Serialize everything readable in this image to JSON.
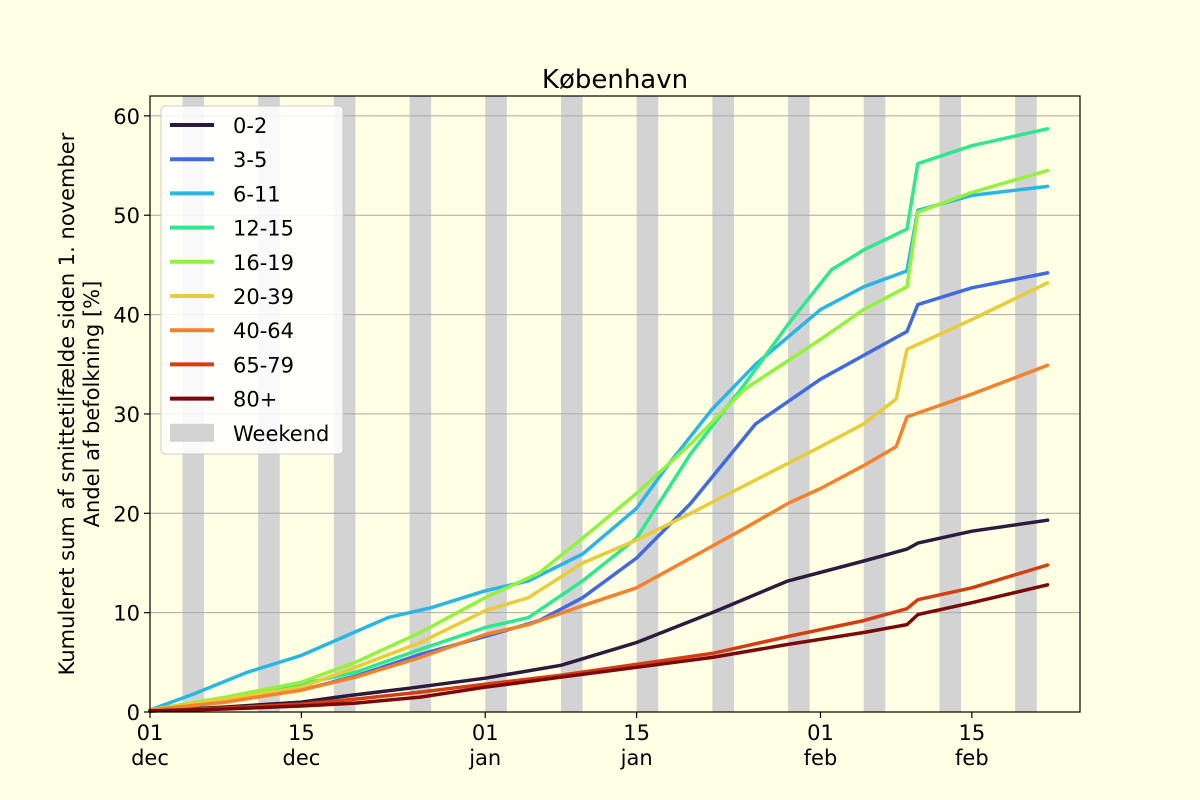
{
  "chart_data": {
    "type": "line",
    "title": "København",
    "xlabel": "",
    "ylabel": [
      "Kumuleret sum af smittetilfælde siden 1. november",
      "Andel af befolkning [%]"
    ],
    "xlim": [
      "2021-12-01",
      "2022-02-25"
    ],
    "ylim": [
      0,
      62
    ],
    "grid": "y",
    "legend": "upper-left",
    "yticks": [
      0,
      10,
      20,
      30,
      40,
      50,
      60
    ],
    "xticks": [
      {
        "date": "2021-12-01",
        "day": "01",
        "month": "dec"
      },
      {
        "date": "2021-12-15",
        "day": "15",
        "month": "dec"
      },
      {
        "date": "2022-01-01",
        "day": "01",
        "month": "jan"
      },
      {
        "date": "2022-01-15",
        "day": "15",
        "month": "jan"
      },
      {
        "date": "2022-02-01",
        "day": "01",
        "month": "feb"
      },
      {
        "date": "2022-02-15",
        "day": "15",
        "month": "feb"
      }
    ],
    "weekend_label": "Weekend",
    "weekend_color": "#d3d3d3",
    "weekends": [
      [
        "2021-12-04",
        "2021-12-05"
      ],
      [
        "2021-12-11",
        "2021-12-12"
      ],
      [
        "2021-12-18",
        "2021-12-19"
      ],
      [
        "2021-12-25",
        "2021-12-26"
      ],
      [
        "2022-01-01",
        "2022-01-02"
      ],
      [
        "2022-01-08",
        "2022-01-09"
      ],
      [
        "2022-01-15",
        "2022-01-16"
      ],
      [
        "2022-01-22",
        "2022-01-23"
      ],
      [
        "2022-01-29",
        "2022-01-30"
      ],
      [
        "2022-02-05",
        "2022-02-06"
      ],
      [
        "2022-02-12",
        "2022-02-13"
      ],
      [
        "2022-02-19",
        "2022-02-20"
      ],
      [
        "2022-02-26",
        "2022-02-27"
      ]
    ],
    "series": [
      {
        "name": "0-2",
        "color": "#2d1b3e",
        "points": [
          [
            "2021-12-01",
            0.1
          ],
          [
            "2021-12-08",
            0.5
          ],
          [
            "2021-12-15",
            1.0
          ],
          [
            "2021-12-19",
            1.6
          ],
          [
            "2021-12-25",
            2.4
          ],
          [
            "2022-01-01",
            3.4
          ],
          [
            "2022-01-08",
            4.7
          ],
          [
            "2022-01-15",
            7.0
          ],
          [
            "2022-01-22",
            10.0
          ],
          [
            "2022-01-29",
            13.2
          ],
          [
            "2022-02-05",
            15.2
          ],
          [
            "2022-02-09",
            16.4
          ],
          [
            "2022-02-10",
            17.0
          ],
          [
            "2022-02-15",
            18.2
          ],
          [
            "2022-02-22",
            19.3
          ]
        ]
      },
      {
        "name": "3-5",
        "color": "#4169e1",
        "points": [
          [
            "2021-12-01",
            0.2
          ],
          [
            "2021-12-08",
            1.2
          ],
          [
            "2021-12-15",
            2.2
          ],
          [
            "2021-12-20",
            3.6
          ],
          [
            "2021-12-26",
            5.8
          ],
          [
            "2022-01-01",
            7.6
          ],
          [
            "2022-01-06",
            9.2
          ],
          [
            "2022-01-10",
            11.5
          ],
          [
            "2022-01-15",
            15.5
          ],
          [
            "2022-01-20",
            21.0
          ],
          [
            "2022-01-26",
            29.0
          ],
          [
            "2022-02-01",
            33.5
          ],
          [
            "2022-02-09",
            38.3
          ],
          [
            "2022-02-10",
            41.0
          ],
          [
            "2022-02-15",
            42.7
          ],
          [
            "2022-02-22",
            44.2
          ]
        ]
      },
      {
        "name": "6-11",
        "color": "#29b6e6",
        "points": [
          [
            "2021-12-01",
            0.2
          ],
          [
            "2021-12-05",
            1.8
          ],
          [
            "2021-12-10",
            4.0
          ],
          [
            "2021-12-15",
            5.7
          ],
          [
            "2021-12-19",
            7.6
          ],
          [
            "2021-12-23",
            9.5
          ],
          [
            "2021-12-27",
            10.5
          ],
          [
            "2022-01-01",
            12.2
          ],
          [
            "2022-01-05",
            13.2
          ],
          [
            "2022-01-10",
            15.9
          ],
          [
            "2022-01-15",
            20.5
          ],
          [
            "2022-01-18",
            25.0
          ],
          [
            "2022-01-22",
            30.5
          ],
          [
            "2022-01-26",
            35.0
          ],
          [
            "2022-02-01",
            40.5
          ],
          [
            "2022-02-05",
            42.8
          ],
          [
            "2022-02-09",
            44.4
          ],
          [
            "2022-02-10",
            50.5
          ],
          [
            "2022-02-15",
            52.0
          ],
          [
            "2022-02-22",
            52.9
          ]
        ]
      },
      {
        "name": "12-15",
        "color": "#2ee88f",
        "points": [
          [
            "2021-12-01",
            0.2
          ],
          [
            "2021-12-08",
            1.2
          ],
          [
            "2021-12-15",
            2.8
          ],
          [
            "2021-12-20",
            4.0
          ],
          [
            "2021-12-26",
            6.3
          ],
          [
            "2022-01-01",
            8.5
          ],
          [
            "2022-01-05",
            9.5
          ],
          [
            "2022-01-10",
            13.2
          ],
          [
            "2022-01-15",
            17.5
          ],
          [
            "2022-01-20",
            26.0
          ],
          [
            "2022-01-25",
            33.0
          ],
          [
            "2022-01-29",
            39.0
          ],
          [
            "2022-02-02",
            44.5
          ],
          [
            "2022-02-05",
            46.5
          ],
          [
            "2022-02-09",
            48.6
          ],
          [
            "2022-02-10",
            55.2
          ],
          [
            "2022-02-15",
            57.0
          ],
          [
            "2022-02-22",
            58.7
          ]
        ]
      },
      {
        "name": "16-19",
        "color": "#93f23f",
        "points": [
          [
            "2021-12-01",
            0.2
          ],
          [
            "2021-12-08",
            1.5
          ],
          [
            "2021-12-15",
            3.0
          ],
          [
            "2021-12-20",
            5.0
          ],
          [
            "2021-12-26",
            8.0
          ],
          [
            "2022-01-01",
            11.5
          ],
          [
            "2022-01-06",
            14.0
          ],
          [
            "2022-01-10",
            17.5
          ],
          [
            "2022-01-15",
            22.0
          ],
          [
            "2022-01-20",
            27.0
          ],
          [
            "2022-01-25",
            32.5
          ],
          [
            "2022-02-01",
            37.5
          ],
          [
            "2022-02-05",
            40.5
          ],
          [
            "2022-02-09",
            42.8
          ],
          [
            "2022-02-10",
            50.3
          ],
          [
            "2022-02-15",
            52.3
          ],
          [
            "2022-02-22",
            54.5
          ]
        ]
      },
      {
        "name": "20-39",
        "color": "#e8cc3a",
        "points": [
          [
            "2021-12-01",
            0.2
          ],
          [
            "2021-12-08",
            1.3
          ],
          [
            "2021-12-15",
            2.5
          ],
          [
            "2021-12-20",
            4.5
          ],
          [
            "2021-12-26",
            7.0
          ],
          [
            "2022-01-01",
            10.2
          ],
          [
            "2022-01-05",
            11.5
          ],
          [
            "2022-01-10",
            15.0
          ],
          [
            "2022-01-15",
            17.3
          ],
          [
            "2022-01-20",
            20.0
          ],
          [
            "2022-01-25",
            22.8
          ],
          [
            "2022-02-01",
            26.7
          ],
          [
            "2022-02-05",
            29.0
          ],
          [
            "2022-02-08",
            31.5
          ],
          [
            "2022-02-09",
            36.5
          ],
          [
            "2022-02-15",
            39.5
          ],
          [
            "2022-02-22",
            43.2
          ]
        ]
      },
      {
        "name": "40-64",
        "color": "#f5822a",
        "points": [
          [
            "2021-12-01",
            0.2
          ],
          [
            "2021-12-08",
            1.0
          ],
          [
            "2021-12-15",
            2.2
          ],
          [
            "2021-12-20",
            3.5
          ],
          [
            "2021-12-26",
            5.5
          ],
          [
            "2022-01-01",
            7.8
          ],
          [
            "2022-01-05",
            8.8
          ],
          [
            "2022-01-10",
            10.7
          ],
          [
            "2022-01-15",
            12.5
          ],
          [
            "2022-01-20",
            15.5
          ],
          [
            "2022-01-25",
            18.5
          ],
          [
            "2022-01-29",
            21.0
          ],
          [
            "2022-02-01",
            22.5
          ],
          [
            "2022-02-05",
            24.8
          ],
          [
            "2022-02-08",
            26.7
          ],
          [
            "2022-02-09",
            29.7
          ],
          [
            "2022-02-15",
            32.0
          ],
          [
            "2022-02-22",
            34.9
          ]
        ]
      },
      {
        "name": "65-79",
        "color": "#d33d11",
        "points": [
          [
            "2021-12-01",
            0.1
          ],
          [
            "2021-12-08",
            0.4
          ],
          [
            "2021-12-15",
            0.8
          ],
          [
            "2021-12-20",
            1.3
          ],
          [
            "2021-12-26",
            2.0
          ],
          [
            "2022-01-01",
            2.8
          ],
          [
            "2022-01-08",
            3.7
          ],
          [
            "2022-01-15",
            4.8
          ],
          [
            "2022-01-22",
            5.9
          ],
          [
            "2022-01-29",
            7.6
          ],
          [
            "2022-02-05",
            9.2
          ],
          [
            "2022-02-09",
            10.4
          ],
          [
            "2022-02-10",
            11.3
          ],
          [
            "2022-02-15",
            12.5
          ],
          [
            "2022-02-22",
            14.8
          ]
        ]
      },
      {
        "name": "80+",
        "color": "#7a0a0a",
        "points": [
          [
            "2021-12-01",
            0.1
          ],
          [
            "2021-12-08",
            0.3
          ],
          [
            "2021-12-15",
            0.6
          ],
          [
            "2021-12-20",
            0.9
          ],
          [
            "2021-12-26",
            1.5
          ],
          [
            "2022-01-01",
            2.5
          ],
          [
            "2022-01-08",
            3.5
          ],
          [
            "2022-01-15",
            4.5
          ],
          [
            "2022-01-22",
            5.5
          ],
          [
            "2022-01-29",
            6.8
          ],
          [
            "2022-02-05",
            8.0
          ],
          [
            "2022-02-09",
            8.8
          ],
          [
            "2022-02-10",
            9.8
          ],
          [
            "2022-02-15",
            11.0
          ],
          [
            "2022-02-22",
            12.8
          ]
        ]
      }
    ]
  }
}
